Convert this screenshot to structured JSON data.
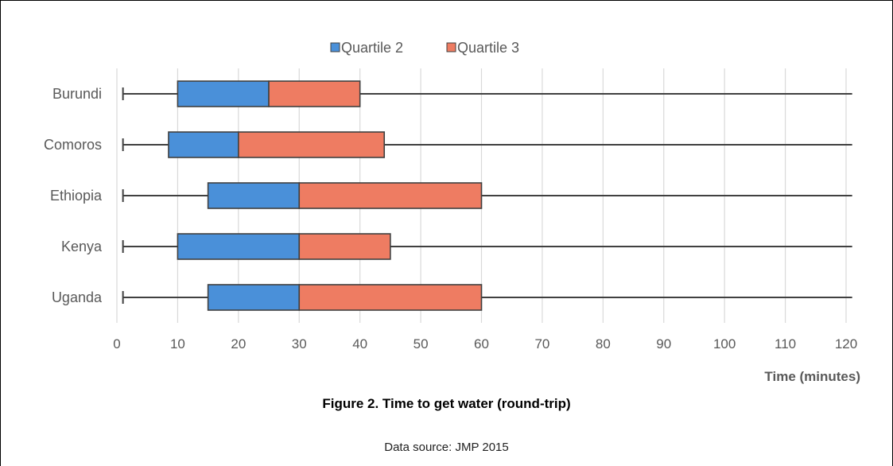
{
  "chart_data": {
    "type": "bar",
    "orientation": "horizontal",
    "stacked": true,
    "categories": [
      "Burundi",
      "Comoros",
      "Ethiopia",
      "Kenya",
      "Uganda"
    ],
    "whiskers": {
      "min": [
        1,
        1,
        1,
        1,
        1
      ],
      "max": [
        121,
        121,
        121,
        121,
        121
      ]
    },
    "series": [
      {
        "name": "Quartile 2",
        "color": "#4a90d9",
        "start": [
          10,
          8.5,
          15,
          10,
          15
        ],
        "end": [
          25,
          20,
          30,
          30,
          30
        ]
      },
      {
        "name": "Quartile 3",
        "color": "#ee7c62",
        "start": [
          25,
          20,
          30,
          30,
          30
        ],
        "end": [
          40,
          44,
          60,
          45,
          60
        ]
      }
    ],
    "xlabel": "Time (minutes)",
    "xlim": [
      0,
      120
    ],
    "xticks": [
      0,
      10,
      20,
      30,
      40,
      50,
      60,
      70,
      80,
      90,
      100,
      110,
      120
    ],
    "grid": "vertical",
    "legend": "top-center"
  },
  "caption": "Figure 2. Time to get water (round-trip)",
  "source": "Data source: JMP 2015"
}
